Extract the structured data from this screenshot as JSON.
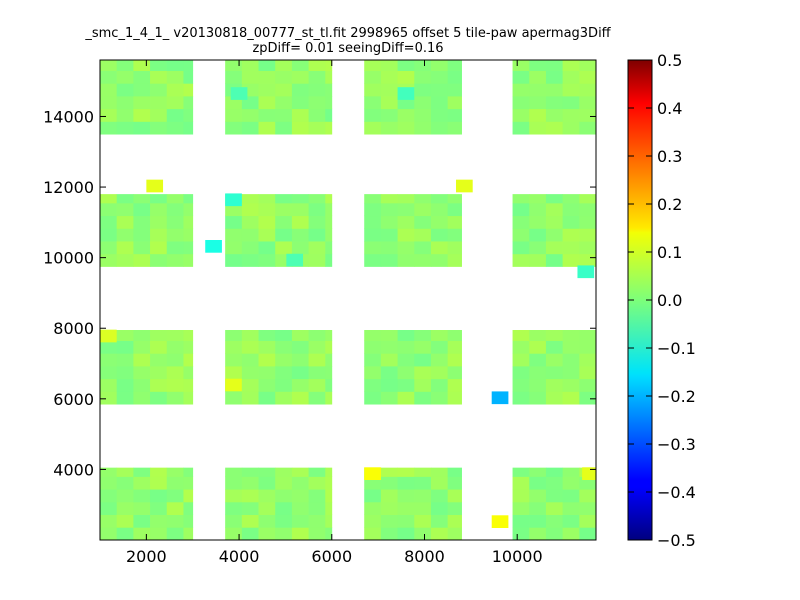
{
  "chart_data": {
    "type": "heatmap",
    "title": "_smc_1_4_1_ v20130818_00777_st_tl.fit 2998965 offset 5 tile-paw apermag3Diff",
    "subtitle": "zpDiff= 0.01 seeingDiff=0.16",
    "xlabel": "",
    "ylabel": "",
    "xlim": [
      1000,
      11700
    ],
    "ylim": [
      2000,
      15600
    ],
    "x_ticks": [
      "2000",
      "4000",
      "6000",
      "8000",
      "10000"
    ],
    "x_tick_values": [
      2000,
      4000,
      6000,
      8000,
      10000
    ],
    "y_ticks": [
      "4000",
      "6000",
      "8000",
      "10000",
      "12000",
      "14000"
    ],
    "y_tick_values": [
      4000,
      6000,
      8000,
      10000,
      12000,
      14000
    ],
    "colorbar": {
      "colormap": "jet",
      "vmin": -0.5,
      "vmax": 0.5,
      "ticks": [
        "0.5",
        "0.4",
        "0.3",
        "0.2",
        "0.1",
        "0.0",
        "−0.1",
        "−0.2",
        "−0.3",
        "−0.4",
        "−0.5"
      ],
      "tick_values": [
        0.5,
        0.4,
        0.3,
        0.2,
        0.1,
        0.0,
        -0.1,
        -0.2,
        -0.3,
        -0.4,
        -0.5
      ]
    },
    "cell_size": 360,
    "typical_value": 0.02,
    "grid": false,
    "detectors": [
      {
        "x": [
          1000,
          3000
        ],
        "y": [
          2000,
          4050
        ]
      },
      {
        "x": [
          3700,
          6000
        ],
        "y": [
          2000,
          4050
        ]
      },
      {
        "x": [
          6700,
          8800
        ],
        "y": [
          2000,
          4050
        ]
      },
      {
        "x": [
          9900,
          11700
        ],
        "y": [
          2000,
          4050
        ]
      },
      {
        "x": [
          1000,
          3000
        ],
        "y": [
          5850,
          7950
        ]
      },
      {
        "x": [
          3700,
          6000
        ],
        "y": [
          5850,
          7950
        ]
      },
      {
        "x": [
          6700,
          8800
        ],
        "y": [
          5850,
          7950
        ]
      },
      {
        "x": [
          9900,
          11700
        ],
        "y": [
          5850,
          7950
        ]
      },
      {
        "x": [
          1000,
          3000
        ],
        "y": [
          9750,
          11800
        ]
      },
      {
        "x": [
          3700,
          6000
        ],
        "y": [
          9750,
          11800
        ]
      },
      {
        "x": [
          6700,
          8800
        ],
        "y": [
          9750,
          11800
        ]
      },
      {
        "x": [
          9900,
          11700
        ],
        "y": [
          9750,
          11800
        ]
      },
      {
        "x": [
          1000,
          3000
        ],
        "y": [
          13500,
          15600
        ]
      },
      {
        "x": [
          3700,
          6000
        ],
        "y": [
          13500,
          15600
        ]
      },
      {
        "x": [
          6700,
          8800
        ],
        "y": [
          13500,
          15600
        ]
      },
      {
        "x": [
          9900,
          11700
        ],
        "y": [
          13500,
          15600
        ]
      }
    ],
    "notable_cells": [
      {
        "x": 9630,
        "y": 6030,
        "value": -0.2
      },
      {
        "x": 9630,
        "y": 2520,
        "value": 0.12
      },
      {
        "x": 6880,
        "y": 3880,
        "value": 0.12
      },
      {
        "x": 11580,
        "y": 3880,
        "value": 0.1
      },
      {
        "x": 1180,
        "y": 7780,
        "value": 0.09
      },
      {
        "x": 3880,
        "y": 6390,
        "value": 0.1
      },
      {
        "x": 2180,
        "y": 12030,
        "value": 0.1
      },
      {
        "x": 8860,
        "y": 12030,
        "value": 0.1
      },
      {
        "x": 3450,
        "y": 10320,
        "value": -0.1
      },
      {
        "x": 3880,
        "y": 11640,
        "value": -0.08
      },
      {
        "x": 5200,
        "y": 9930,
        "value": -0.05
      },
      {
        "x": 7600,
        "y": 14650,
        "value": -0.06
      },
      {
        "x": 4000,
        "y": 14650,
        "value": -0.05
      },
      {
        "x": 11480,
        "y": 9600,
        "value": -0.07
      }
    ]
  }
}
